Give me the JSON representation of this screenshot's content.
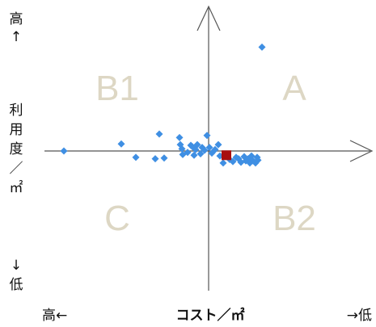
{
  "chart_data": {
    "type": "scatter",
    "title": "",
    "quadrant_labels": {
      "A": "A",
      "B1": "B1",
      "B2": "B2",
      "C": "C"
    },
    "x_axis": {
      "label": "コスト／㎡",
      "left_end": "高←",
      "right_end": "→低"
    },
    "y_axis": {
      "label_chars": [
        "利",
        "用",
        "度",
        "／",
        "㎡"
      ],
      "top_end": [
        "高",
        "↑"
      ],
      "bottom_end": [
        "↓",
        "低"
      ]
    },
    "xlim": [
      -10,
      10
    ],
    "ylim": [
      -10,
      10
    ],
    "colors": {
      "axis": "#555555",
      "series": "#3f8fe3",
      "highlight": "#a80e0e",
      "quadrant_label": "#ddd7c4"
    },
    "series": [
      {
        "values": [
          [
            3.3,
            7.35
          ],
          [
            -8.95,
            0.0
          ],
          [
            -5.4,
            0.5
          ],
          [
            -4.5,
            -0.45
          ],
          [
            -3.05,
            1.2
          ],
          [
            -3.3,
            -0.55
          ],
          [
            -2.75,
            -0.5
          ],
          [
            -1.8,
            0.95
          ],
          [
            -1.75,
            0.45
          ],
          [
            -1.65,
            0.15
          ],
          [
            -1.6,
            -0.25
          ],
          [
            -1.3,
            -0.1
          ],
          [
            -1.1,
            0.4
          ],
          [
            -1.0,
            0.3
          ],
          [
            -0.9,
            -0.3
          ],
          [
            -0.8,
            0.1
          ],
          [
            -0.7,
            0.45
          ],
          [
            -0.5,
            -0.2
          ],
          [
            -0.4,
            0.25
          ],
          [
            -0.25,
            0.05
          ],
          [
            -0.1,
            1.1
          ],
          [
            0.05,
            0.25
          ],
          [
            0.2,
            -0.15
          ],
          [
            0.4,
            0.1
          ],
          [
            0.6,
            0.45
          ],
          [
            0.7,
            -0.35
          ],
          [
            0.9,
            -0.85
          ],
          [
            1.05,
            -0.4
          ],
          [
            1.3,
            -0.6
          ],
          [
            1.5,
            -0.75
          ],
          [
            1.7,
            -0.45
          ],
          [
            1.85,
            -0.55
          ],
          [
            2.0,
            -0.8
          ],
          [
            2.2,
            -0.4
          ],
          [
            2.3,
            -0.7
          ],
          [
            2.45,
            -0.55
          ],
          [
            2.55,
            -0.85
          ],
          [
            2.65,
            -0.35
          ],
          [
            2.75,
            -0.7
          ],
          [
            2.9,
            -0.85
          ],
          [
            3.0,
            -0.45
          ],
          [
            3.05,
            -0.65
          ]
        ]
      }
    ],
    "highlight_point": [
      1.1,
      -0.3
    ]
  }
}
